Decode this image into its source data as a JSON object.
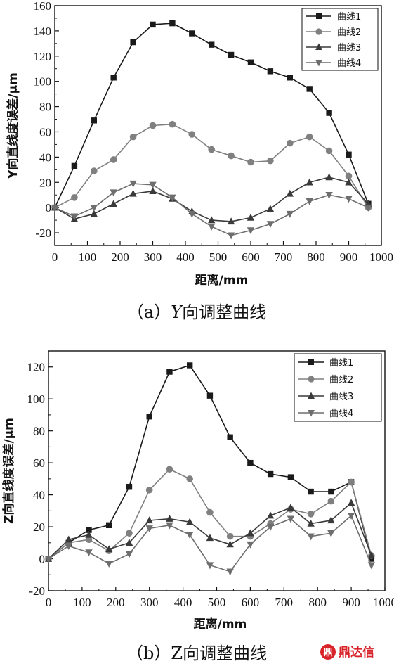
{
  "chart_data": [
    {
      "type": "line",
      "caption_prefix": "（a）",
      "caption_italic": "Y",
      "caption_suffix": "向调整曲线",
      "xlabel": "距离/mm",
      "ylabel": "Y向直线度误差/μm",
      "xlim": [
        0,
        1000
      ],
      "ylim": [
        -30,
        160
      ],
      "xticks": [
        0,
        100,
        200,
        300,
        400,
        500,
        600,
        700,
        800,
        900,
        1000
      ],
      "yticks": [
        -20,
        0,
        20,
        40,
        60,
        80,
        100,
        120,
        140,
        160
      ],
      "legend_position": "top-right",
      "x": [
        0,
        60,
        120,
        180,
        240,
        300,
        360,
        420,
        480,
        540,
        600,
        660,
        720,
        780,
        840,
        900,
        960
      ],
      "series": [
        {
          "name": "曲线1",
          "marker": "square",
          "color": "#1a1a1a",
          "values": [
            0,
            33,
            69,
            103,
            131,
            145,
            146,
            138,
            129,
            121,
            115,
            108,
            103,
            94,
            75,
            42,
            3
          ]
        },
        {
          "name": "曲线2",
          "marker": "circle",
          "color": "#808080",
          "values": [
            0,
            8,
            29,
            38,
            56,
            65,
            66,
            58,
            46,
            41,
            36,
            37,
            51,
            56,
            45,
            25,
            0
          ]
        },
        {
          "name": "曲线3",
          "marker": "triangle-up",
          "color": "#3a3a3a",
          "values": [
            0,
            -9,
            -5,
            3,
            11,
            13,
            7,
            -3,
            -10,
            -11,
            -8,
            -1,
            11,
            20,
            24,
            20,
            3
          ]
        },
        {
          "name": "曲线4",
          "marker": "triangle-down",
          "color": "#6e6e6e",
          "values": [
            0,
            -7,
            0,
            12,
            19,
            18,
            8,
            -5,
            -15,
            -22,
            -18,
            -13,
            -5,
            5,
            10,
            7,
            0
          ]
        }
      ]
    },
    {
      "type": "line",
      "caption_prefix": "（b）",
      "caption_italic": "",
      "caption_suffix": "Z向调整曲线",
      "xlabel": "距离/mm",
      "ylabel": "Z向直线度误差/μm",
      "xlim": [
        0,
        1000
      ],
      "ylim": [
        -20,
        130
      ],
      "xticks": [
        0,
        100,
        200,
        300,
        400,
        500,
        600,
        700,
        800,
        900,
        1000
      ],
      "yticks": [
        -20,
        0,
        20,
        40,
        60,
        80,
        100,
        120
      ],
      "legend_position": "top-right",
      "x": [
        0,
        60,
        120,
        180,
        240,
        300,
        360,
        420,
        480,
        540,
        600,
        660,
        720,
        780,
        840,
        900,
        960
      ],
      "series": [
        {
          "name": "曲线1",
          "marker": "square",
          "color": "#1a1a1a",
          "values": [
            0,
            10,
            18,
            21,
            45,
            89,
            117,
            121,
            102,
            76,
            60,
            53,
            51,
            42,
            42,
            48,
            0
          ]
        },
        {
          "name": "曲线2",
          "marker": "circle",
          "color": "#808080",
          "values": [
            0,
            10,
            12,
            5,
            16,
            43,
            56,
            50,
            29,
            14,
            14,
            22,
            31,
            28,
            36,
            48,
            2
          ]
        },
        {
          "name": "曲线3",
          "marker": "triangle-up",
          "color": "#3a3a3a",
          "values": [
            0,
            12,
            15,
            6,
            10,
            24,
            25,
            23,
            13,
            9,
            16,
            27,
            32,
            22,
            24,
            35,
            2
          ]
        },
        {
          "name": "曲线4",
          "marker": "triangle-down",
          "color": "#6e6e6e",
          "values": [
            0,
            8,
            4,
            -3,
            3,
            19,
            21,
            15,
            -4,
            -8,
            9,
            20,
            25,
            14,
            16,
            27,
            -4
          ]
        }
      ]
    }
  ],
  "watermark": {
    "glyph": "鼎",
    "text": "鼎达信"
  }
}
